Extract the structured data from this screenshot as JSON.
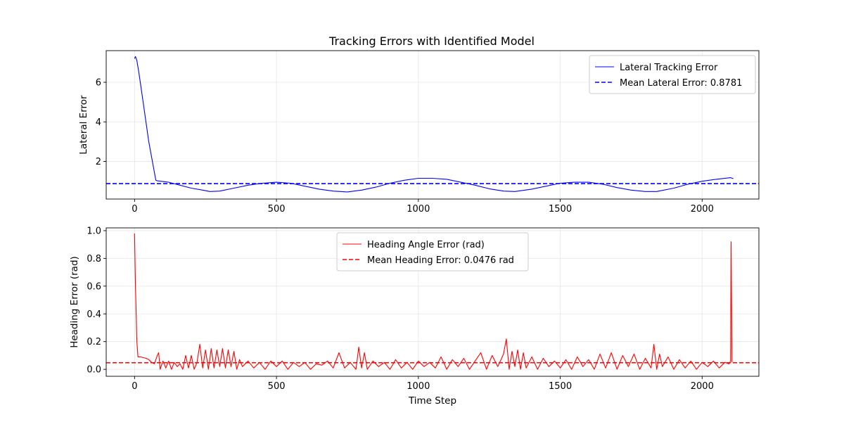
{
  "figure_title": "Tracking Errors with Identified Model",
  "chart_data": [
    {
      "type": "line",
      "title": "",
      "xlabel": "",
      "ylabel": "Lateral Error",
      "xlim": [
        -100,
        2200
      ],
      "ylim": [
        0.1,
        7.6
      ],
      "xticks": [
        0,
        500,
        1000,
        1500,
        2000
      ],
      "yticks": [
        2,
        4,
        6
      ],
      "grid": true,
      "legend_position": "upper right",
      "series": [
        {
          "name": "Lateral Tracking Error",
          "color": "#0000ff",
          "style": "solid",
          "x": [
            0,
            3,
            8,
            15,
            30,
            50,
            75,
            80,
            120,
            160,
            200,
            240,
            265,
            300,
            350,
            400,
            450,
            500,
            550,
            600,
            650,
            700,
            750,
            800,
            850,
            900,
            950,
            1000,
            1050,
            1100,
            1150,
            1200,
            1250,
            1300,
            1340,
            1400,
            1450,
            1500,
            1550,
            1600,
            1650,
            1700,
            1750,
            1800,
            1840,
            1900,
            1950,
            2000,
            2050,
            2100,
            2110
          ],
          "y": [
            7.2,
            7.3,
            7.1,
            6.5,
            5.0,
            3.0,
            1.05,
            1.02,
            0.95,
            0.8,
            0.65,
            0.55,
            0.48,
            0.5,
            0.65,
            0.8,
            0.9,
            0.95,
            0.9,
            0.75,
            0.6,
            0.5,
            0.46,
            0.55,
            0.7,
            0.9,
            1.05,
            1.15,
            1.15,
            1.1,
            0.95,
            0.8,
            0.62,
            0.5,
            0.48,
            0.6,
            0.75,
            0.9,
            0.95,
            0.95,
            0.85,
            0.68,
            0.55,
            0.48,
            0.48,
            0.65,
            0.85,
            1.0,
            1.1,
            1.18,
            1.13
          ]
        },
        {
          "name": "Mean Lateral Error: 0.8781",
          "color": "#0000ff",
          "style": "dashed",
          "value": 0.8781
        }
      ]
    },
    {
      "type": "line",
      "title": "",
      "xlabel": "Time Step",
      "ylabel": "Heading Error (rad)",
      "xlim": [
        -100,
        2200
      ],
      "ylim": [
        -0.05,
        1.02
      ],
      "xticks": [
        0,
        500,
        1000,
        1500,
        2000
      ],
      "yticks": [
        0.0,
        0.2,
        0.4,
        0.6,
        0.8,
        1.0
      ],
      "grid": true,
      "legend_position": "upper center",
      "series": [
        {
          "name": "Heading Angle Error (rad)",
          "color": "#ff0000",
          "style": "solid",
          "x": [
            0,
            3,
            8,
            12,
            20,
            30,
            40,
            50,
            60,
            70,
            80,
            85,
            90,
            100,
            110,
            120,
            130,
            140,
            150,
            160,
            170,
            180,
            190,
            200,
            210,
            220,
            230,
            240,
            250,
            260,
            270,
            280,
            290,
            300,
            310,
            320,
            330,
            340,
            350,
            360,
            370,
            380,
            400,
            420,
            440,
            460,
            480,
            500,
            520,
            540,
            560,
            580,
            600,
            620,
            640,
            660,
            680,
            700,
            720,
            740,
            760,
            780,
            790,
            800,
            810,
            820,
            840,
            860,
            880,
            900,
            920,
            940,
            960,
            980,
            1000,
            1020,
            1040,
            1060,
            1080,
            1100,
            1120,
            1140,
            1160,
            1180,
            1200,
            1220,
            1240,
            1260,
            1280,
            1300,
            1310,
            1320,
            1330,
            1340,
            1350,
            1360,
            1370,
            1380,
            1400,
            1420,
            1440,
            1460,
            1480,
            1500,
            1520,
            1540,
            1560,
            1580,
            1600,
            1620,
            1640,
            1660,
            1680,
            1700,
            1720,
            1740,
            1760,
            1780,
            1800,
            1820,
            1830,
            1840,
            1850,
            1860,
            1880,
            1900,
            1920,
            1940,
            1960,
            1980,
            2000,
            2020,
            2040,
            2060,
            2080,
            2095,
            2100,
            2102,
            2105
          ],
          "y": [
            0.98,
            0.6,
            0.2,
            0.09,
            0.09,
            0.085,
            0.08,
            0.07,
            0.05,
            0.04,
            0.1,
            0.12,
            0.0,
            0.06,
            0.01,
            0.06,
            0.0,
            0.05,
            0.02,
            0.04,
            0.0,
            0.1,
            0.01,
            0.1,
            0.0,
            0.05,
            0.18,
            0.01,
            0.14,
            0.0,
            0.15,
            0.01,
            0.14,
            0.02,
            0.15,
            0.01,
            0.14,
            0.02,
            0.13,
            0.0,
            0.07,
            0.02,
            0.06,
            0.01,
            0.05,
            0.0,
            0.06,
            0.02,
            0.06,
            0.0,
            0.05,
            0.02,
            0.05,
            0.0,
            0.04,
            0.03,
            0.06,
            0.01,
            0.12,
            0.01,
            0.05,
            0.0,
            0.16,
            0.01,
            0.12,
            0.0,
            0.06,
            0.02,
            0.05,
            0.0,
            0.07,
            0.01,
            0.05,
            0.0,
            0.06,
            0.02,
            0.05,
            0.01,
            0.09,
            0.0,
            0.07,
            0.02,
            0.08,
            0.0,
            0.06,
            0.12,
            0.0,
            0.1,
            0.02,
            0.11,
            0.22,
            0.0,
            0.13,
            0.02,
            0.14,
            0.0,
            0.12,
            0.01,
            0.09,
            0.0,
            0.08,
            0.02,
            0.06,
            0.01,
            0.07,
            0.0,
            0.09,
            0.02,
            0.07,
            0.0,
            0.11,
            0.01,
            0.12,
            0.0,
            0.1,
            0.02,
            0.11,
            0.0,
            0.08,
            0.01,
            0.18,
            0.0,
            0.11,
            0.02,
            0.09,
            0.0,
            0.07,
            0.01,
            0.06,
            0.0,
            0.05,
            0.02,
            0.06,
            0.01,
            0.05,
            0.04,
            0.06,
            0.92,
            0.05
          ]
        },
        {
          "name": "Mean Heading Error: 0.0476 rad",
          "color": "#ff0000",
          "style": "dashed",
          "value": 0.0476
        }
      ]
    }
  ]
}
